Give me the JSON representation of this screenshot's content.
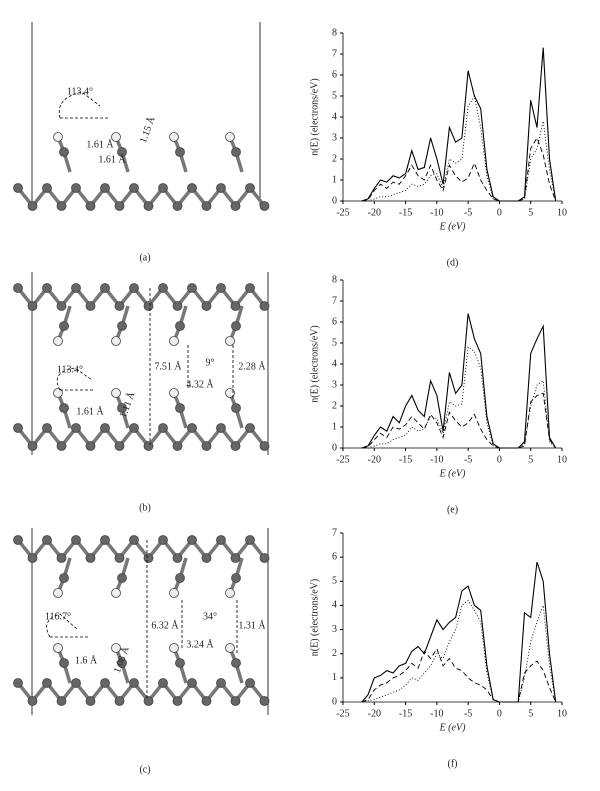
{
  "chart_data": [
    {
      "type": "line",
      "caption": "(d)",
      "x_label": "E (eV)",
      "y_label": "n(E) (electrons/eV)",
      "xlim": [
        -25,
        10
      ],
      "xticks": [
        -25,
        -20,
        -15,
        -10,
        -5,
        0,
        5,
        10
      ],
      "ylim": [
        0,
        8
      ],
      "yticks": [
        0,
        1,
        2,
        3,
        4,
        5,
        6,
        7,
        8
      ],
      "x": [
        -22,
        -21,
        -20,
        -19,
        -18,
        -17,
        -16,
        -15,
        -14,
        -13,
        -12,
        -11,
        -10,
        -9,
        -8,
        -7,
        -6,
        -5,
        -4,
        -3,
        -2,
        -1,
        0,
        1,
        2,
        3,
        4,
        5,
        6,
        7,
        8,
        9
      ],
      "series": [
        {
          "color": "#000000",
          "dash": "solid",
          "values": [
            0,
            0.1,
            0.6,
            1.0,
            0.9,
            1.2,
            1.1,
            1.3,
            2.4,
            1.5,
            1.6,
            3.0,
            2.0,
            0.8,
            3.5,
            2.8,
            3.0,
            6.2,
            5.0,
            4.4,
            1.5,
            0.2,
            0,
            0,
            0,
            0,
            0.2,
            4.8,
            3.5,
            7.3,
            2.0,
            0
          ]
        },
        {
          "color": "#000000",
          "dash": "dashed",
          "values": [
            0,
            0.05,
            0.5,
            0.8,
            0.6,
            0.9,
            0.8,
            1.2,
            1.7,
            1.2,
            1.0,
            1.7,
            1.0,
            0.5,
            1.7,
            1.2,
            0.9,
            1.1,
            1.8,
            1.0,
            0.5,
            0.1,
            0,
            0,
            0,
            0,
            0.1,
            2.5,
            3.0,
            2.2,
            0.8,
            0
          ]
        },
        {
          "color": "#000000",
          "dash": "dotted",
          "values": [
            0,
            0,
            0.1,
            0.2,
            0.2,
            0.3,
            0.4,
            0.5,
            0.8,
            0.7,
            0.8,
            1.2,
            1.3,
            0.6,
            2.0,
            1.8,
            2.0,
            4.5,
            5.0,
            3.5,
            1.2,
            0.1,
            0,
            0,
            0,
            0,
            0.1,
            2.0,
            2.5,
            3.8,
            1.5,
            0
          ]
        }
      ]
    },
    {
      "type": "line",
      "caption": "(e)",
      "x_label": "E (eV)",
      "y_label": "n(E) (electrons/eV)",
      "xlim": [
        -25,
        10
      ],
      "xticks": [
        -25,
        -20,
        -15,
        -10,
        -5,
        0,
        5,
        10
      ],
      "ylim": [
        0,
        8
      ],
      "yticks": [
        0,
        1,
        2,
        3,
        4,
        5,
        6,
        7,
        8
      ],
      "x": [
        -22,
        -21,
        -20,
        -19,
        -18,
        -17,
        -16,
        -15,
        -14,
        -13,
        -12,
        -11,
        -10,
        -9,
        -8,
        -7,
        -6,
        -5,
        -4,
        -3,
        -2,
        -1,
        0,
        1,
        2,
        3,
        4,
        5,
        6,
        7,
        8,
        9
      ],
      "series": [
        {
          "color": "#000000",
          "dash": "solid",
          "values": [
            0,
            0.1,
            0.6,
            1.0,
            0.8,
            1.5,
            1.2,
            2.0,
            2.5,
            1.8,
            1.5,
            3.2,
            2.5,
            0.8,
            3.6,
            2.6,
            3.0,
            6.4,
            5.2,
            4.5,
            1.5,
            0.2,
            0,
            0,
            0,
            0,
            0.3,
            4.5,
            5.2,
            5.8,
            0.5,
            0
          ]
        },
        {
          "color": "#000000",
          "dash": "dashed",
          "values": [
            0,
            0.05,
            0.4,
            0.7,
            0.5,
            1.0,
            0.9,
            1.1,
            1.5,
            1.2,
            0.9,
            1.6,
            1.2,
            0.5,
            1.7,
            1.3,
            1.0,
            1.2,
            1.6,
            0.9,
            0.4,
            0.1,
            0,
            0,
            0,
            0,
            0.1,
            2.2,
            2.5,
            2.6,
            0.4,
            0
          ]
        },
        {
          "color": "#000000",
          "dash": "dotted",
          "values": [
            0,
            0,
            0.1,
            0.2,
            0.2,
            0.4,
            0.5,
            0.6,
            1.0,
            0.8,
            0.9,
            1.5,
            1.4,
            0.7,
            2.2,
            2.0,
            2.1,
            4.8,
            4.6,
            3.8,
            1.2,
            0.1,
            0,
            0,
            0,
            0,
            0.2,
            2.0,
            3.0,
            3.2,
            0.3,
            0
          ]
        }
      ]
    },
    {
      "type": "line",
      "caption": "(f)",
      "x_label": "E (eV)",
      "y_label": "n(E) (electrons/eV)",
      "xlim": [
        -25,
        10
      ],
      "xticks": [
        -25,
        -20,
        -15,
        -10,
        -5,
        0,
        5,
        10
      ],
      "ylim": [
        0,
        7
      ],
      "yticks": [
        0,
        1,
        2,
        3,
        4,
        5,
        6,
        7
      ],
      "x": [
        -22,
        -21,
        -20,
        -19,
        -18,
        -17,
        -16,
        -15,
        -14,
        -13,
        -12,
        -11,
        -10,
        -9,
        -8,
        -7,
        -6,
        -5,
        -4,
        -3,
        -2,
        -1,
        0,
        1,
        2,
        3,
        4,
        5,
        6,
        7,
        8,
        9
      ],
      "series": [
        {
          "color": "#000000",
          "dash": "solid",
          "values": [
            0,
            0.3,
            1.0,
            1.1,
            1.3,
            1.2,
            1.5,
            1.6,
            2.1,
            2.3,
            2.0,
            2.7,
            3.4,
            3.0,
            3.3,
            3.5,
            4.6,
            4.8,
            4.0,
            3.8,
            1.5,
            0.1,
            0,
            0,
            0,
            0,
            3.7,
            3.5,
            5.8,
            5.0,
            2.0,
            0
          ]
        },
        {
          "color": "#000000",
          "dash": "dashed",
          "values": [
            0,
            0.1,
            0.5,
            0.7,
            0.8,
            1.0,
            1.1,
            1.3,
            1.6,
            1.4,
            2.1,
            1.8,
            2.2,
            1.5,
            1.8,
            1.4,
            1.3,
            1.0,
            0.8,
            0.7,
            0.5,
            0.1,
            0,
            0,
            0,
            0,
            1.2,
            1.5,
            1.7,
            1.3,
            0.6,
            0
          ]
        },
        {
          "color": "#000000",
          "dash": "dotted",
          "values": [
            0,
            0.05,
            0.1,
            0.2,
            0.3,
            0.4,
            0.5,
            0.7,
            1.0,
            0.9,
            1.2,
            1.5,
            2.0,
            1.8,
            2.5,
            3.0,
            4.0,
            4.2,
            3.8,
            3.3,
            1.2,
            0.1,
            0,
            0,
            0,
            0,
            1.0,
            2.5,
            3.3,
            4.0,
            1.5,
            0
          ]
        }
      ]
    }
  ],
  "structures": [
    {
      "caption": "(a)",
      "labels": [
        "113.4°",
        "1.61 Å",
        "1.61 Å",
        "1.15 Å"
      ]
    },
    {
      "caption": "(b)",
      "labels": [
        "7.51 Å",
        "9°",
        "4.32 Å",
        "2.28 Å",
        "113.4°",
        "1.61 Å",
        "1.11 Å"
      ]
    },
    {
      "caption": "(c)",
      "labels": [
        "6.32 Å",
        "34°",
        "3.24 Å",
        "1.31 Å",
        "116.7°",
        "1.6 Å",
        "1.08 Å"
      ]
    }
  ]
}
